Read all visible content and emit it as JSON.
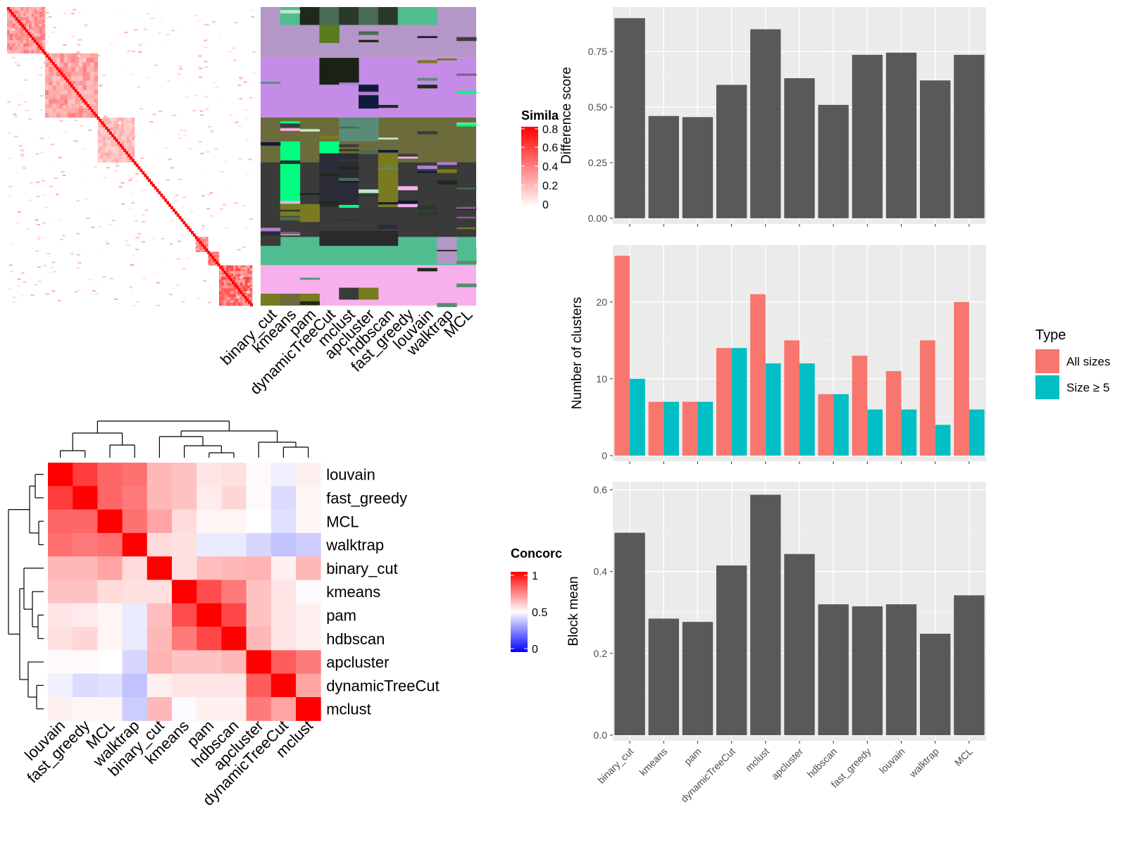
{
  "colors": {
    "panel_bg": "#ebebeb",
    "bar": "#595959",
    "all_sizes": "#f8766d",
    "size_ge_5": "#00bfc4",
    "grid": "#ffffff",
    "heat_high": "#ff0000",
    "heat_mid": "#ffffff",
    "heat_low": "#0000ff"
  },
  "methods": [
    "binary_cut",
    "kmeans",
    "pam",
    "dynamicTreeCut",
    "mclust",
    "apcluster",
    "hdbscan",
    "fast_greedy",
    "louvain",
    "walktrap",
    "MCL"
  ],
  "similarity_legend": {
    "title": "Simila",
    "ticks": [
      "0.8",
      "0.6",
      "0.4",
      "0.2",
      "0"
    ]
  },
  "concordance_legend": {
    "title": "Concorc",
    "ticks": [
      "1",
      "0.5",
      "0"
    ]
  },
  "type_legend": {
    "title": "Type",
    "entries": [
      "All sizes",
      "Size ≥ 5"
    ]
  },
  "concordance_order": [
    "louvain",
    "fast_greedy",
    "MCL",
    "walktrap",
    "binary_cut",
    "kmeans",
    "pam",
    "hdbscan",
    "apcluster",
    "dynamicTreeCut",
    "mclust"
  ],
  "chart_data": [
    {
      "type": "bar",
      "title": "",
      "xlabel": "",
      "ylabel": "Difference score",
      "categories": [
        "binary_cut",
        "kmeans",
        "pam",
        "dynamicTreeCut",
        "mclust",
        "apcluster",
        "hdbscan",
        "fast_greedy",
        "louvain",
        "walktrap",
        "MCL"
      ],
      "values": [
        0.9,
        0.46,
        0.455,
        0.6,
        0.85,
        0.63,
        0.51,
        0.735,
        0.745,
        0.62,
        0.735
      ],
      "ylim": [
        0,
        0.95
      ],
      "yticks": [
        "0.00",
        "0.25",
        "0.50",
        "0.75"
      ],
      "grid": true
    },
    {
      "type": "bar",
      "title": "",
      "xlabel": "",
      "ylabel": "Number of clusters",
      "categories": [
        "binary_cut",
        "kmeans",
        "pam",
        "dynamicTreeCut",
        "mclust",
        "apcluster",
        "hdbscan",
        "fast_greedy",
        "louvain",
        "walktrap",
        "MCL"
      ],
      "series": [
        {
          "name": "All sizes",
          "values": [
            26,
            7,
            7,
            14,
            21,
            15,
            8,
            13,
            11,
            15,
            20
          ]
        },
        {
          "name": "Size ≥ 5",
          "values": [
            10,
            7,
            7,
            14,
            12,
            12,
            8,
            6,
            6,
            4,
            6
          ]
        }
      ],
      "ylim": [
        0,
        27.4
      ],
      "yticks": [
        "0",
        "10",
        "20"
      ],
      "grid": true,
      "legend_placement": "right"
    },
    {
      "type": "bar",
      "title": "",
      "xlabel": "",
      "ylabel": "Block mean",
      "categories": [
        "binary_cut",
        "kmeans",
        "pam",
        "dynamicTreeCut",
        "mclust",
        "apcluster",
        "hdbscan",
        "fast_greedy",
        "louvain",
        "walktrap",
        "MCL"
      ],
      "values": [
        0.495,
        0.285,
        0.277,
        0.415,
        0.588,
        0.443,
        0.32,
        0.315,
        0.32,
        0.248,
        0.342
      ],
      "ylim": [
        0,
        0.62
      ],
      "yticks": [
        "0.0",
        "0.2",
        "0.4",
        "0.6"
      ],
      "grid": true
    },
    {
      "type": "heatmap",
      "title": "",
      "legend_title": "Concorc",
      "rows": [
        "louvain",
        "fast_greedy",
        "MCL",
        "walktrap",
        "binary_cut",
        "kmeans",
        "pam",
        "hdbscan",
        "apcluster",
        "dynamicTreeCut",
        "mclust"
      ],
      "cols": [
        "louvain",
        "fast_greedy",
        "MCL",
        "walktrap",
        "binary_cut",
        "kmeans",
        "pam",
        "hdbscan",
        "apcluster",
        "dynamicTreeCut",
        "mclust"
      ],
      "values": [
        [
          1.0,
          0.88,
          0.8,
          0.78,
          0.64,
          0.62,
          0.55,
          0.56,
          0.51,
          0.47,
          0.53
        ],
        [
          0.88,
          1.0,
          0.8,
          0.76,
          0.64,
          0.62,
          0.54,
          0.58,
          0.51,
          0.43,
          0.52
        ],
        [
          0.8,
          0.8,
          1.0,
          0.78,
          0.68,
          0.57,
          0.52,
          0.52,
          0.5,
          0.44,
          0.52
        ],
        [
          0.78,
          0.76,
          0.78,
          1.0,
          0.57,
          0.56,
          0.46,
          0.46,
          0.42,
          0.38,
          0.4
        ],
        [
          0.64,
          0.64,
          0.68,
          0.57,
          1.0,
          0.56,
          0.63,
          0.64,
          0.65,
          0.53,
          0.64
        ],
        [
          0.62,
          0.62,
          0.57,
          0.56,
          0.56,
          1.0,
          0.85,
          0.76,
          0.62,
          0.55,
          0.49
        ],
        [
          0.55,
          0.54,
          0.52,
          0.46,
          0.63,
          0.85,
          1.0,
          0.86,
          0.62,
          0.55,
          0.53
        ],
        [
          0.56,
          0.58,
          0.52,
          0.46,
          0.64,
          0.76,
          0.86,
          1.0,
          0.64,
          0.55,
          0.53
        ],
        [
          0.51,
          0.51,
          0.5,
          0.42,
          0.65,
          0.62,
          0.62,
          0.64,
          1.0,
          0.82,
          0.76
        ],
        [
          0.47,
          0.43,
          0.44,
          0.38,
          0.53,
          0.55,
          0.55,
          0.55,
          0.82,
          1.0,
          0.68
        ],
        [
          0.53,
          0.52,
          0.52,
          0.4,
          0.64,
          0.49,
          0.53,
          0.53,
          0.76,
          0.68,
          1.0
        ]
      ]
    },
    {
      "type": "heatmap",
      "title": "",
      "legend_title": "Simila",
      "blocks": [
        {
          "start": 0.0,
          "end": 0.155,
          "value": 0.55
        },
        {
          "start": 0.155,
          "end": 0.37,
          "value": 0.5
        },
        {
          "start": 0.37,
          "end": 0.52,
          "value": 0.35
        },
        {
          "start": 0.77,
          "end": 0.82,
          "value": 0.65
        },
        {
          "start": 0.82,
          "end": 0.865,
          "value": 0.7
        },
        {
          "start": 0.865,
          "end": 1.0,
          "value": 0.75
        }
      ],
      "clusters": [
        {
          "color": "#b596c8",
          "start": 0.0,
          "end": 0.168
        },
        {
          "color": "#c48ce6",
          "start": 0.168,
          "end": 0.37
        },
        {
          "color": "#6b6b3b",
          "start": 0.37,
          "end": 0.52
        },
        {
          "color": "#3a3a3a",
          "start": 0.52,
          "end": 0.77
        },
        {
          "color": "#4fbd8f",
          "start": 0.77,
          "end": 0.865
        },
        {
          "color": "#f8b0ec",
          "start": 0.865,
          "end": 1.0
        }
      ]
    }
  ]
}
